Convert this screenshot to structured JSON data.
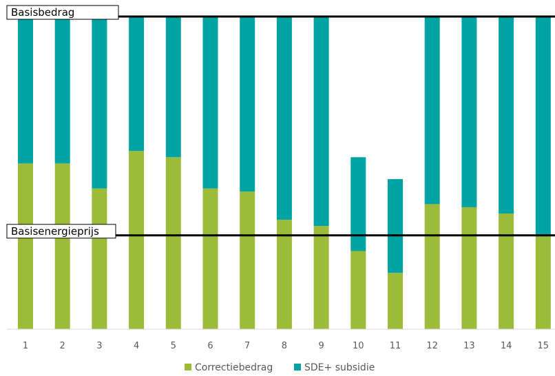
{
  "chart_data": {
    "type": "bar",
    "stacked": true,
    "categories": [
      "1",
      "2",
      "3",
      "4",
      "5",
      "6",
      "7",
      "8",
      "9",
      "10",
      "11",
      "12",
      "13",
      "14",
      "15"
    ],
    "series": [
      {
        "name": "Correctiebedrag",
        "color": "#9BBB39",
        "values": [
          53,
          53,
          45,
          57,
          55,
          45,
          44,
          35,
          33,
          25,
          18,
          40,
          39,
          37,
          30
        ]
      },
      {
        "name": "SDE+ subsidie",
        "color": "#00A3A3",
        "values": [
          47,
          47,
          55,
          43,
          45,
          55,
          56,
          65,
          67,
          30,
          30,
          60,
          61,
          63,
          70
        ]
      }
    ],
    "reference_lines": [
      {
        "label": "Basisbedrag",
        "value": 100
      },
      {
        "label": "Basisenergieprijs",
        "value": 30
      }
    ],
    "legend": {
      "position": "bottom"
    },
    "grid": false,
    "ylim": [
      0,
      100
    ]
  }
}
